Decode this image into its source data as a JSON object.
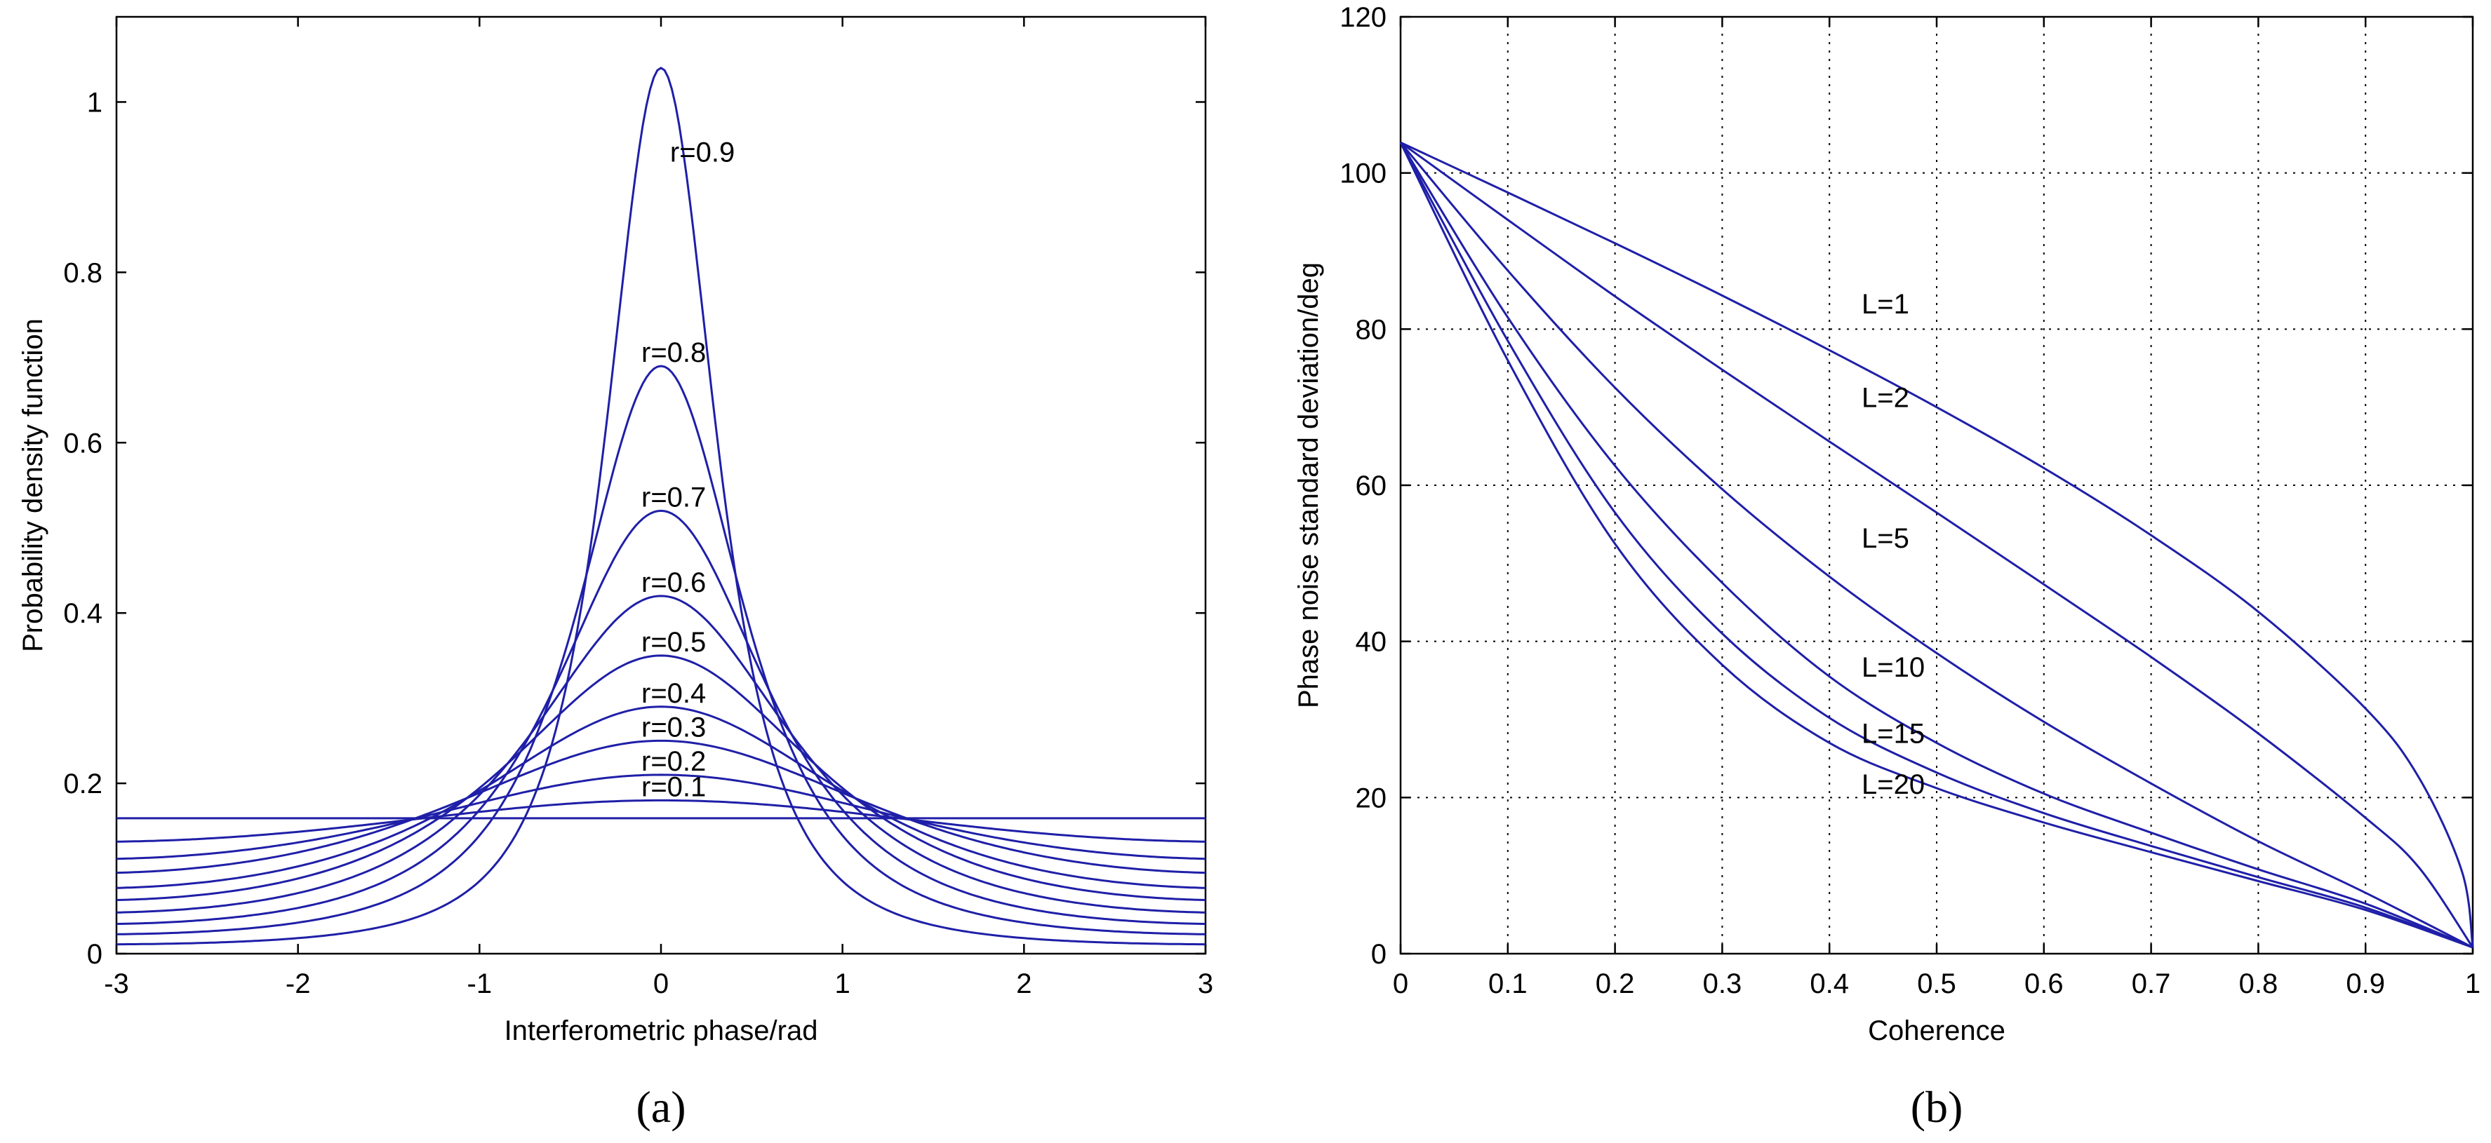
{
  "chart_data": [
    {
      "type": "line",
      "panel_label": "(a)",
      "xlabel": "Interferometric phase/rad",
      "ylabel": "Probability density function",
      "xlim": [
        -3,
        3
      ],
      "ylim": [
        0,
        1.1
      ],
      "xticks": [
        -3,
        -2,
        -1,
        0,
        1,
        2,
        3
      ],
      "yticks": [
        0,
        0.2,
        0.4,
        0.6,
        0.8,
        1
      ],
      "ytick_labels": [
        "0",
        "0.2",
        "0.4",
        "0.6",
        "0.8",
        "1"
      ],
      "grid": false,
      "series": [
        {
          "name": "r=0.1",
          "label": "r=0.1",
          "coherence": 0.1,
          "peak": 0.18
        },
        {
          "name": "r=0.2",
          "label": "r=0.2",
          "coherence": 0.2,
          "peak": 0.21
        },
        {
          "name": "r=0.3",
          "label": "r=0.3",
          "coherence": 0.3,
          "peak": 0.25
        },
        {
          "name": "r=0.4",
          "label": "r=0.4",
          "coherence": 0.4,
          "peak": 0.29
        },
        {
          "name": "r=0.5",
          "label": "r=0.5",
          "coherence": 0.5,
          "peak": 0.35
        },
        {
          "name": "r=0.6",
          "label": "r=0.6",
          "coherence": 0.6,
          "peak": 0.42
        },
        {
          "name": "r=0.7",
          "label": "r=0.7",
          "coherence": 0.7,
          "peak": 0.52
        },
        {
          "name": "r=0.8",
          "label": "r=0.8",
          "coherence": 0.8,
          "peak": 0.69
        },
        {
          "name": "r=0.9",
          "label": "r=0.9",
          "coherence": 0.9,
          "peak": 1.04
        },
        {
          "name": "r=0",
          "label": "",
          "coherence": 0.0,
          "peak": 0.159
        }
      ]
    },
    {
      "type": "line",
      "panel_label": "(b)",
      "xlabel": "Coherence",
      "ylabel": "Phase noise standard deviation/deg",
      "xlim": [
        0,
        1
      ],
      "ylim": [
        0,
        120
      ],
      "xticks": [
        0,
        0.1,
        0.2,
        0.3,
        0.4,
        0.5,
        0.6,
        0.7,
        0.8,
        0.9,
        1
      ],
      "xtick_labels": [
        "0",
        "0.1",
        "0.2",
        "0.3",
        "0.4",
        "0.5",
        "0.6",
        "0.7",
        "0.8",
        "0.9",
        "1"
      ],
      "yticks": [
        0,
        20,
        40,
        60,
        80,
        100,
        120
      ],
      "grid": true,
      "series": [
        {
          "name": "L=1",
          "label": "L=1",
          "x": [
            0,
            0.1,
            0.2,
            0.3,
            0.4,
            0.5,
            0.6,
            0.7,
            0.8,
            0.9,
            0.95,
            0.99,
            1
          ],
          "y": [
            103.9,
            97.5,
            91.0,
            84.3,
            77.3,
            70.0,
            62.2,
            53.6,
            43.8,
            31.4,
            22.5,
            10.5,
            0.8
          ]
        },
        {
          "name": "L=2",
          "label": "L=2",
          "x": [
            0,
            0.1,
            0.2,
            0.3,
            0.4,
            0.5,
            0.6,
            0.7,
            0.8,
            0.9,
            0.95,
            1
          ],
          "y": [
            103.9,
            94.0,
            84.2,
            74.8,
            65.6,
            56.5,
            47.3,
            38.0,
            28.2,
            17.4,
            11.0,
            0.8
          ]
        },
        {
          "name": "L=5",
          "label": "L=5",
          "x": [
            0,
            0.1,
            0.2,
            0.3,
            0.4,
            0.5,
            0.6,
            0.7,
            0.8,
            0.9,
            1
          ],
          "y": [
            103.9,
            87.5,
            72.5,
            59.5,
            48.3,
            38.5,
            29.7,
            21.8,
            14.4,
            7.8,
            0.8
          ]
        },
        {
          "name": "L=10",
          "label": "L=10",
          "x": [
            0,
            0.1,
            0.2,
            0.3,
            0.4,
            0.5,
            0.6,
            0.7,
            0.8,
            0.9,
            1
          ],
          "y": [
            103.9,
            81.5,
            62.5,
            47.5,
            35.5,
            27.0,
            20.5,
            15.5,
            10.8,
            6.4,
            0.8
          ]
        },
        {
          "name": "L=15",
          "label": "L=15",
          "x": [
            0,
            0.1,
            0.2,
            0.3,
            0.4,
            0.5,
            0.6,
            0.7,
            0.8,
            0.9,
            1
          ],
          "y": [
            103.9,
            78.5,
            56.5,
            41.0,
            30.2,
            23.2,
            18.0,
            13.8,
            9.8,
            5.9,
            0.8
          ]
        },
        {
          "name": "L=20",
          "label": "L=20",
          "x": [
            0,
            0.1,
            0.2,
            0.3,
            0.4,
            0.5,
            0.6,
            0.7,
            0.8,
            0.9,
            1
          ],
          "y": [
            103.9,
            76.0,
            52.5,
            37.0,
            27.0,
            21.2,
            16.8,
            13.0,
            9.3,
            5.6,
            0.8
          ]
        }
      ]
    }
  ]
}
